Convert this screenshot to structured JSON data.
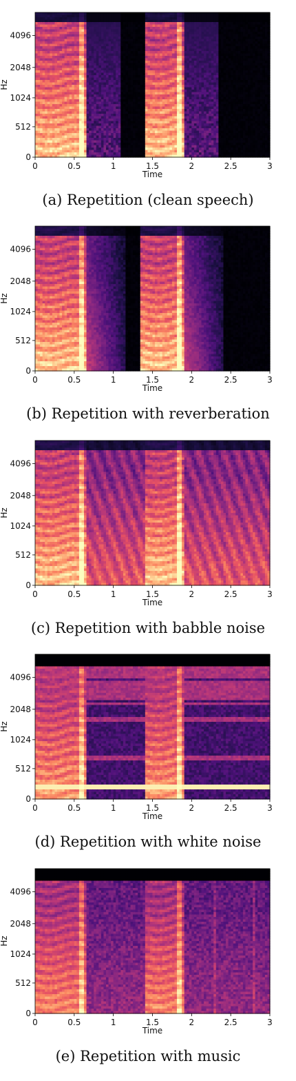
{
  "chart_data": [
    {
      "type": "heatmap",
      "panel_id": "a",
      "caption": "(a) Repetition (clean speech)",
      "xlabel": "Time",
      "ylabel": "Hz",
      "xticks": [
        "0",
        "0.5",
        "1",
        "1.5",
        "2",
        "2.5",
        "3"
      ],
      "yticks": [
        "0",
        "512",
        "1024",
        "2048",
        "4096"
      ],
      "xlim": [
        0,
        3
      ],
      "condition": "clean",
      "utterances": [
        [
          0.0,
          0.65
        ],
        [
          1.4,
          1.9
        ]
      ]
    },
    {
      "type": "heatmap",
      "panel_id": "b",
      "caption": "(b) Repetition with reverberation",
      "xlabel": "Time",
      "ylabel": "Hz",
      "xticks": [
        "0",
        "0.5",
        "1",
        "1.5",
        "2",
        "2.5",
        "3"
      ],
      "yticks": [
        "0",
        "512",
        "1024",
        "2048",
        "4096"
      ],
      "xlim": [
        0,
        3
      ],
      "condition": "reverb",
      "utterances": [
        [
          0.0,
          0.65
        ],
        [
          1.35,
          1.9
        ]
      ]
    },
    {
      "type": "heatmap",
      "panel_id": "c",
      "caption": "(c) Repetition with babble noise",
      "xlabel": "Time",
      "ylabel": "Hz",
      "xticks": [
        "0",
        "0.5",
        "1",
        "1.5",
        "2",
        "2.5",
        "3"
      ],
      "yticks": [
        "0",
        "512",
        "1024",
        "2048",
        "4096"
      ],
      "xlim": [
        0,
        3
      ],
      "condition": "babble",
      "utterances": [
        [
          0.0,
          0.65
        ],
        [
          1.4,
          1.9
        ]
      ]
    },
    {
      "type": "heatmap",
      "panel_id": "d",
      "caption": "(d) Repetition with white noise",
      "xlabel": "Time",
      "ylabel": "Hz",
      "xticks": [
        "0",
        "0.5",
        "1",
        "1.5",
        "2",
        "2.5",
        "3"
      ],
      "yticks": [
        "0",
        "512",
        "1024",
        "2048",
        "4096"
      ],
      "xlim": [
        0,
        3
      ],
      "condition": "white",
      "utterances": [
        [
          0.0,
          0.65
        ],
        [
          1.4,
          1.9
        ]
      ]
    },
    {
      "type": "heatmap",
      "panel_id": "e",
      "caption": "(e) Repetition with music",
      "xlabel": "Time",
      "ylabel": "Hz",
      "xticks": [
        "0",
        "0.5",
        "1",
        "1.5",
        "2",
        "2.5",
        "3"
      ],
      "yticks": [
        "0",
        "512",
        "1024",
        "2048",
        "4096"
      ],
      "xlim": [
        0,
        3
      ],
      "condition": "music",
      "utterances": [
        [
          0.0,
          0.65
        ],
        [
          1.4,
          1.9
        ]
      ]
    }
  ],
  "colors": {
    "colormap": [
      "#000004",
      "#1c1044",
      "#4f127b",
      "#812581",
      "#b5367a",
      "#e55064",
      "#fb8761",
      "#fec287",
      "#fcfdbf"
    ],
    "text": "#111111"
  }
}
